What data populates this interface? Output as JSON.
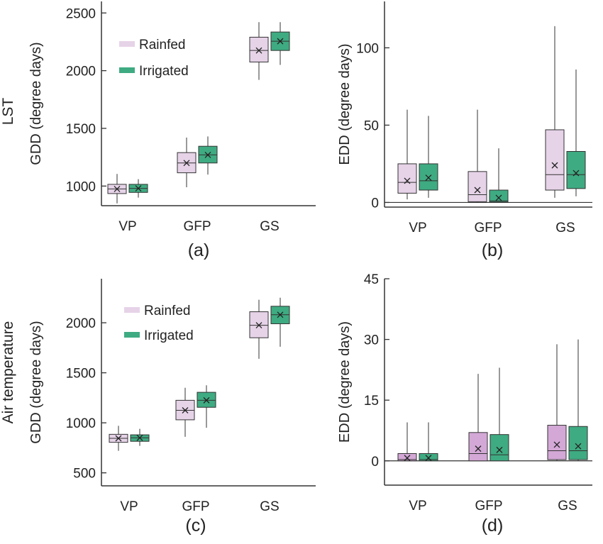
{
  "figure": {
    "row_labels": [
      "LST",
      "Air temperature"
    ],
    "colors": {
      "Rainfed": "#e6d3e8",
      "Irrigated": "#3fab82",
      "Rainfed_d": "#d3a8d6"
    }
  },
  "chart_data": [
    {
      "panel": "(a)",
      "type": "box",
      "categories": [
        "VP",
        "GFP",
        "GS"
      ],
      "ylabel": "GDD (degree days)",
      "ylim": [
        830,
        2600
      ],
      "yticks": [
        1000,
        1500,
        2000,
        2500
      ],
      "legend": {
        "placement": "top-left",
        "entries": [
          "Rainfed",
          "Irrigated"
        ]
      },
      "series": [
        {
          "name": "Rainfed",
          "boxes": [
            {
              "min": 850,
              "q1": 935,
              "median": 975,
              "q3": 1015,
              "max": 1105,
              "mean": 975
            },
            {
              "min": 990,
              "q1": 1115,
              "median": 1200,
              "q3": 1290,
              "max": 1420,
              "mean": 1200
            },
            {
              "min": 1920,
              "q1": 2075,
              "median": 2175,
              "q3": 2290,
              "max": 2420,
              "mean": 2175
            }
          ]
        },
        {
          "name": "Irrigated",
          "boxes": [
            {
              "min": 900,
              "q1": 945,
              "median": 980,
              "q3": 1015,
              "max": 1060,
              "mean": 980
            },
            {
              "min": 1100,
              "q1": 1200,
              "median": 1270,
              "q3": 1345,
              "max": 1430,
              "mean": 1270
            },
            {
              "min": 2050,
              "q1": 2175,
              "median": 2255,
              "q3": 2335,
              "max": 2420,
              "mean": 2255
            }
          ]
        }
      ]
    },
    {
      "panel": "(b)",
      "type": "box",
      "categories": [
        "VP",
        "GFP",
        "GS"
      ],
      "ylabel": "EDD (degree days)",
      "ylim": [
        -3,
        130
      ],
      "yticks": [
        0,
        50,
        100
      ],
      "zero_line": true,
      "series": [
        {
          "name": "Rainfed",
          "boxes": [
            {
              "min": 2,
              "q1": 6,
              "median": 13,
              "q3": 25,
              "max": 60,
              "mean": 14
            },
            {
              "min": 0,
              "q1": 0.5,
              "median": 5,
              "q3": 20,
              "max": 60,
              "mean": 8
            },
            {
              "min": 3,
              "q1": 8,
              "median": 18,
              "q3": 47,
              "max": 114,
              "mean": 24
            }
          ]
        },
        {
          "name": "Irrigated",
          "boxes": [
            {
              "min": 3,
              "q1": 8,
              "median": 14,
              "q3": 25,
              "max": 56,
              "mean": 16
            },
            {
              "min": 0,
              "q1": 0.3,
              "median": 1,
              "q3": 8,
              "max": 35,
              "mean": 3
            },
            {
              "min": 4,
              "q1": 9,
              "median": 18,
              "q3": 33,
              "max": 86,
              "mean": 19
            }
          ]
        }
      ]
    },
    {
      "panel": "(c)",
      "type": "box",
      "categories": [
        "VP",
        "GFP",
        "GS"
      ],
      "ylabel": "GDD (degree days)",
      "ylim": [
        370,
        2440
      ],
      "yticks": [
        500,
        1000,
        1500,
        2000
      ],
      "legend": {
        "placement": "top-left",
        "entries": [
          "Rainfed",
          "Irrigated"
        ]
      },
      "series": [
        {
          "name": "Rainfed",
          "boxes": [
            {
              "min": 720,
              "q1": 805,
              "median": 845,
              "q3": 885,
              "max": 970,
              "mean": 845
            },
            {
              "min": 860,
              "q1": 1030,
              "median": 1125,
              "q3": 1225,
              "max": 1350,
              "mean": 1125
            },
            {
              "min": 1640,
              "q1": 1850,
              "median": 1975,
              "q3": 2110,
              "max": 2230,
              "mean": 1975
            }
          ]
        },
        {
          "name": "Irrigated",
          "boxes": [
            {
              "min": 770,
              "q1": 815,
              "median": 850,
              "q3": 880,
              "max": 940,
              "mean": 850
            },
            {
              "min": 950,
              "q1": 1155,
              "median": 1225,
              "q3": 1305,
              "max": 1375,
              "mean": 1225
            },
            {
              "min": 1760,
              "q1": 1990,
              "median": 2080,
              "q3": 2165,
              "max": 2250,
              "mean": 2080
            }
          ]
        }
      ]
    },
    {
      "panel": "(d)",
      "type": "box",
      "categories": [
        "VP",
        "GFP",
        "GS"
      ],
      "ylabel": "EDD (degree days)",
      "ylim": [
        -6,
        45
      ],
      "yticks": [
        0,
        15,
        30,
        45
      ],
      "zero_line": true,
      "series": [
        {
          "name": "Rainfed",
          "boxes": [
            {
              "min": 0,
              "q1": 0,
              "median": 0.3,
              "q3": 1.8,
              "max": 9.5,
              "mean": 0.7
            },
            {
              "min": 0,
              "q1": 0,
              "median": 1.8,
              "q3": 7,
              "max": 21.5,
              "mean": 3
            },
            {
              "min": 0,
              "q1": 0.3,
              "median": 2.5,
              "q3": 8.8,
              "max": 28.8,
              "mean": 4
            }
          ]
        },
        {
          "name": "Irrigated",
          "boxes": [
            {
              "min": 0,
              "q1": 0,
              "median": 0.3,
              "q3": 1.8,
              "max": 9.5,
              "mean": 0.7
            },
            {
              "min": 0,
              "q1": 0,
              "median": 1.5,
              "q3": 6.5,
              "max": 23,
              "mean": 2.7
            },
            {
              "min": 0,
              "q1": 0.3,
              "median": 2.5,
              "q3": 8.5,
              "max": 30,
              "mean": 3.6
            }
          ]
        }
      ]
    }
  ]
}
